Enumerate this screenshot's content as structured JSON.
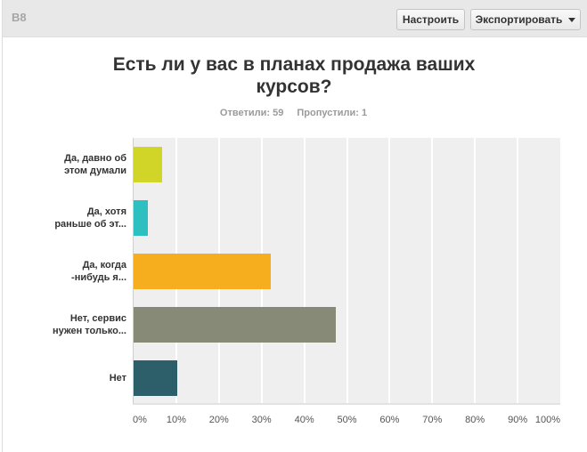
{
  "header": {
    "question_number": "B8",
    "customize_label": "Настроить",
    "export_label": "Экспортировать",
    "export_icon": "caret-down-icon"
  },
  "summary": {
    "answered_label": "Ответили: 59",
    "skipped_label": "Пропустили: 1"
  },
  "chart_data": {
    "type": "bar",
    "orientation": "horizontal",
    "title": "Есть ли у вас в планах продажа ваших курсов?",
    "categories": [
      "Да, давно об этом думали",
      "Да, хотя раньше об эт...",
      "Да, когда -нибудь я...",
      "Нет, сервис нужен только...",
      "Нет"
    ],
    "category_lines": [
      [
        "Да, давно об",
        "этом думали"
      ],
      [
        "Да, хотя",
        "раньше об эт..."
      ],
      [
        "Да, когда",
        "-нибудь я..."
      ],
      [
        "Нет, сервис",
        "нужен только..."
      ],
      [
        "Нет"
      ]
    ],
    "values": [
      6.78,
      3.39,
      32.2,
      47.46,
      10.17
    ],
    "colors": [
      "#d0d527",
      "#2ebfc0",
      "#f7ae1e",
      "#888a78",
      "#2d5f6b"
    ],
    "xlabel": "",
    "ylabel": "",
    "xlim": [
      0,
      100
    ],
    "x_ticks": [
      "0%",
      "10%",
      "20%",
      "30%",
      "40%",
      "50%",
      "60%",
      "70%",
      "80%",
      "90%",
      "100%"
    ],
    "grid": true,
    "legend": "none"
  }
}
